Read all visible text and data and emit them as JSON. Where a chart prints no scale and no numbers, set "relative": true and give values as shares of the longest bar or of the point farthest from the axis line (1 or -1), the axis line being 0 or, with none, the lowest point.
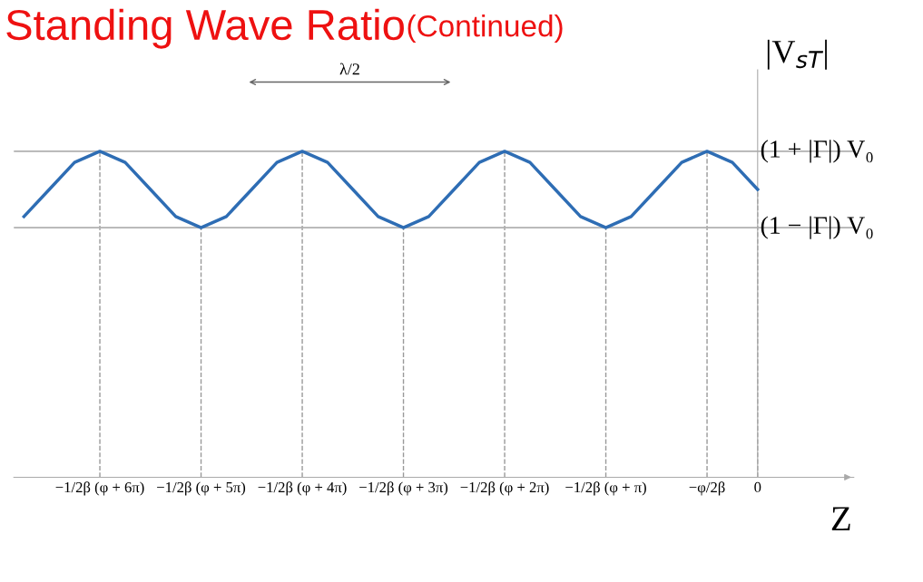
{
  "chart_data": {
    "type": "line",
    "title": "Standing Wave Ratio",
    "subtitle": "(Continued)",
    "xlabel": "Z",
    "ylabel": "|V$_{sT}$|",
    "relative": true,
    "categories": [
      null,
      null,
      null,
      "−1/2β (φ + 6π)",
      null,
      null,
      null,
      "−1/2β (φ + 5π)",
      null,
      null,
      null,
      "−1/2β (φ + 4π)",
      null,
      null,
      null,
      "−1/2β (φ + 3π)",
      null,
      null,
      null,
      "−1/2β (φ + 2π)",
      null,
      null,
      null,
      "−1/2β (φ + π)",
      null,
      null,
      null,
      "−φ/2β",
      null,
      "0"
    ],
    "series": [
      {
        "color": "#2e6db4",
        "values": [
          0.8,
          0.883,
          0.966,
          1,
          0.966,
          0.883,
          0.8,
          0.766,
          0.8,
          0.883,
          0.966,
          1,
          0.966,
          0.883,
          0.8,
          0.766,
          0.8,
          0.883,
          0.966,
          1,
          0.966,
          0.883,
          0.8,
          0.766,
          0.8,
          0.883,
          0.966,
          1,
          0.966,
          0.883
        ]
      }
    ],
    "ref_lines": [
      {
        "axis": "y",
        "value": 1,
        "label": "(1 + |Γ|) V₀",
        "color": "#b0b0b0"
      },
      {
        "axis": "y",
        "value": 0.766,
        "label": "(1 − |Γ|) V₀",
        "color": "#b0b0b0"
      }
    ],
    "annotations": [
      "λ/2"
    ],
    "grid": "x",
    "line_style": "solid",
    "marker": "none",
    "legend": false
  }
}
